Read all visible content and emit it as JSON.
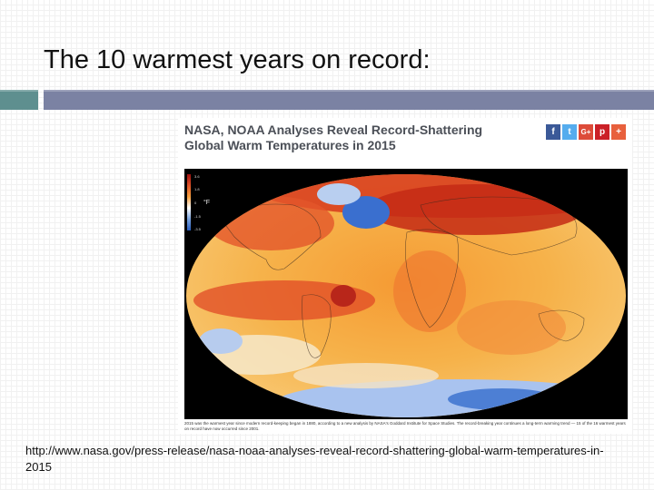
{
  "slide": {
    "title": "The 10 warmest years on record:",
    "source_url": "http://www.nasa.gov/press-release/nasa-noaa-analyses-reveal-record-shattering-global-warm-temperatures-in-2015"
  },
  "article": {
    "headline": "NASA, NOAA Analyses Reveal Record-Shattering Global Warm Temperatures in 2015",
    "share_buttons": [
      {
        "name": "facebook-icon",
        "glyph": "f",
        "color": "#3b5998"
      },
      {
        "name": "twitter-icon",
        "glyph": "t",
        "color": "#55acee"
      },
      {
        "name": "google-plus-icon",
        "glyph": "G+",
        "color": "#dd4b39"
      },
      {
        "name": "pinterest-icon",
        "glyph": "p",
        "color": "#cb2027"
      },
      {
        "name": "more-share-icon",
        "glyph": "+",
        "color": "#e8603c"
      }
    ],
    "caption": "2015 was the warmest year since modern record-keeping began in 1880, according to a new analysis by NASA's Goddard Institute for Space Studies. The record-breaking year continues a long-term warming trend — 15 of the 16 warmest years on record have now occurred since 2001."
  },
  "map_legend": {
    "unit": "°F",
    "ticks": [
      "3.6",
      "1.8",
      "0",
      "-1.5",
      "-3.5"
    ]
  },
  "colors": {
    "title_rule_left": "#5e8f8f",
    "title_rule_right": "#7b82a3",
    "warm": "#d73a1c",
    "cool": "#3a6fcf"
  }
}
